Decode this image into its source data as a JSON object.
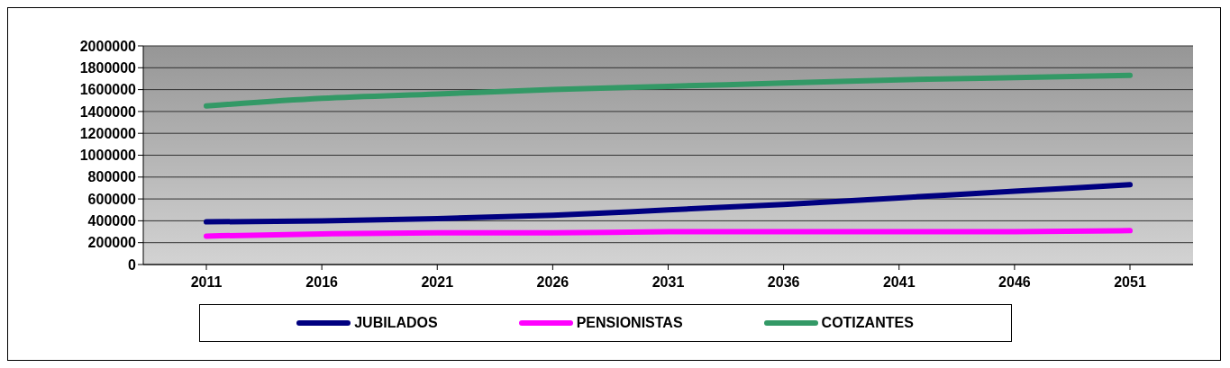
{
  "chart_data": {
    "type": "line",
    "categories": [
      "2011",
      "2016",
      "2021",
      "2026",
      "2031",
      "2036",
      "2041",
      "2046",
      "2051"
    ],
    "series": [
      {
        "name": "JUBILADOS",
        "color": "#000080",
        "values": [
          390000,
          400000,
          420000,
          450000,
          500000,
          550000,
          610000,
          670000,
          730000
        ]
      },
      {
        "name": "PENSIONISTAS",
        "color": "#ff00ff",
        "values": [
          260000,
          280000,
          290000,
          290000,
          300000,
          300000,
          300000,
          300000,
          310000
        ]
      },
      {
        "name": "COTIZANTES",
        "color": "#339966",
        "values": [
          1450000,
          1520000,
          1560000,
          1600000,
          1630000,
          1660000,
          1690000,
          1710000,
          1730000
        ]
      }
    ],
    "ylim": [
      0,
      2000000
    ],
    "yticks": [
      0,
      200000,
      400000,
      600000,
      800000,
      1000000,
      1200000,
      1400000,
      1600000,
      1800000,
      2000000
    ],
    "grid": "y",
    "legend": "bottom",
    "marker": "none",
    "line_style": "solid"
  }
}
